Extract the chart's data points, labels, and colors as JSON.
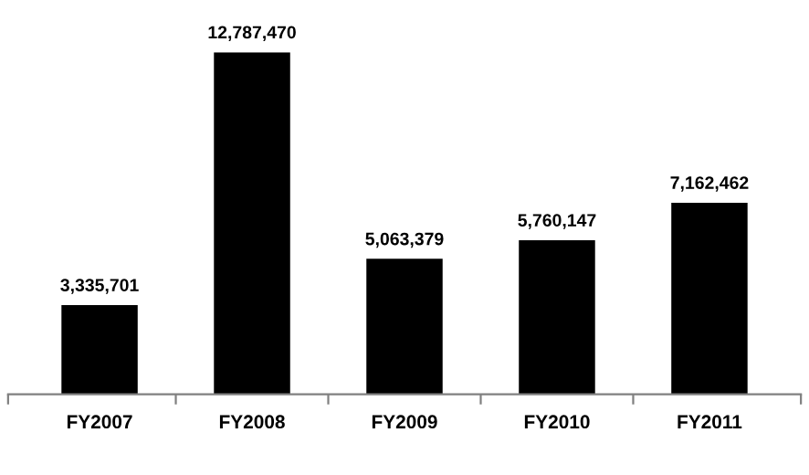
{
  "chart_data": {
    "type": "bar",
    "categories": [
      "FY2007",
      "FY2008",
      "FY2009",
      "FY2010",
      "FY2011"
    ],
    "values": [
      3335701,
      12787470,
      5063379,
      5760147,
      7162462
    ],
    "color": "#000000",
    "data_labels": true,
    "value_labels": [
      "3,335,701",
      "12,787,470",
      "5,063,379",
      "5,760,147",
      "7,162,462"
    ],
    "grid": false,
    "legend": false
  }
}
